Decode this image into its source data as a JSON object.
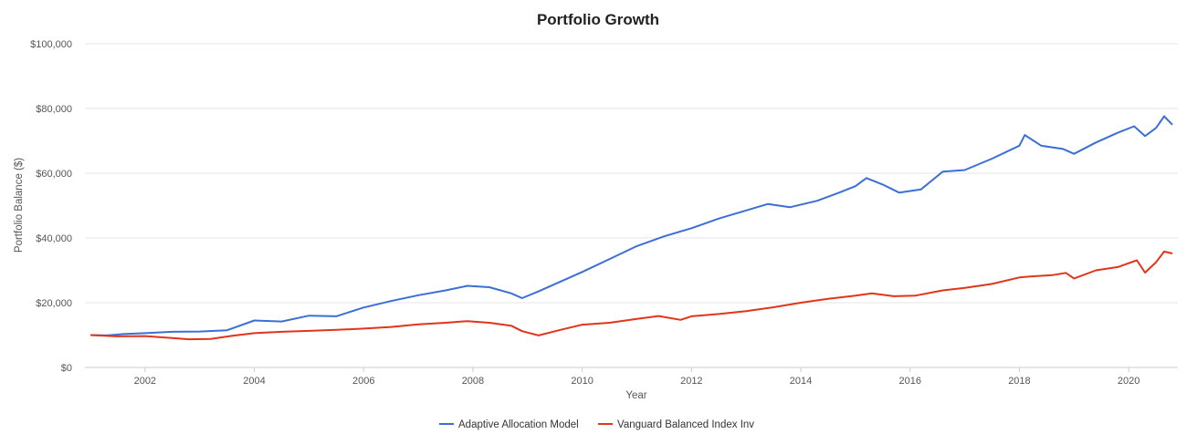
{
  "chart_data": {
    "type": "line",
    "title": "Portfolio Growth",
    "xlabel": "Year",
    "ylabel": "Portfolio Balance ($)",
    "xlim": [
      2000.9,
      2020.9
    ],
    "ylim": [
      0,
      100000
    ],
    "x_ticks": [
      2002,
      2004,
      2006,
      2008,
      2010,
      2012,
      2014,
      2016,
      2018,
      2020
    ],
    "y_ticks": [
      0,
      20000,
      40000,
      60000,
      80000,
      100000
    ],
    "y_tick_labels": [
      "$0",
      "$20,000",
      "$40,000",
      "$60,000",
      "$80,000",
      "$100,000"
    ],
    "grid": true,
    "legend_position": "bottom",
    "series": [
      {
        "name": "Adaptive Allocation Model",
        "color": "#3b6fd6",
        "points": [
          [
            2001.0,
            10000
          ],
          [
            2001.3,
            9900
          ],
          [
            2001.6,
            10300
          ],
          [
            2002.0,
            10600
          ],
          [
            2002.5,
            11000
          ],
          [
            2003.0,
            11100
          ],
          [
            2003.5,
            11500
          ],
          [
            2004.0,
            14500
          ],
          [
            2004.5,
            14200
          ],
          [
            2005.0,
            16000
          ],
          [
            2005.5,
            15800
          ],
          [
            2006.0,
            18500
          ],
          [
            2006.5,
            20500
          ],
          [
            2007.0,
            22300
          ],
          [
            2007.5,
            23800
          ],
          [
            2007.9,
            25200
          ],
          [
            2008.3,
            24800
          ],
          [
            2008.7,
            22900
          ],
          [
            2008.9,
            21400
          ],
          [
            2009.2,
            23500
          ],
          [
            2009.6,
            26500
          ],
          [
            2010.0,
            29500
          ],
          [
            2010.5,
            33500
          ],
          [
            2011.0,
            37500
          ],
          [
            2011.5,
            40500
          ],
          [
            2012.0,
            43000
          ],
          [
            2012.5,
            46000
          ],
          [
            2013.0,
            48500
          ],
          [
            2013.4,
            50500
          ],
          [
            2013.8,
            49500
          ],
          [
            2014.3,
            51500
          ],
          [
            2014.7,
            54000
          ],
          [
            2015.0,
            56000
          ],
          [
            2015.2,
            58500
          ],
          [
            2015.5,
            56500
          ],
          [
            2015.8,
            54000
          ],
          [
            2016.2,
            55000
          ],
          [
            2016.6,
            60500
          ],
          [
            2017.0,
            61000
          ],
          [
            2017.5,
            64500
          ],
          [
            2018.0,
            68500
          ],
          [
            2018.1,
            71800
          ],
          [
            2018.4,
            68500
          ],
          [
            2018.8,
            67500
          ],
          [
            2019.0,
            66000
          ],
          [
            2019.4,
            69500
          ],
          [
            2019.8,
            72500
          ],
          [
            2020.1,
            74500
          ],
          [
            2020.3,
            71500
          ],
          [
            2020.5,
            74000
          ],
          [
            2020.65,
            77600
          ],
          [
            2020.8,
            75000
          ]
        ]
      },
      {
        "name": "Vanguard Balanced Index Inv",
        "color": "#e0351b",
        "points": [
          [
            2001.0,
            10000
          ],
          [
            2001.5,
            9600
          ],
          [
            2002.0,
            9700
          ],
          [
            2002.5,
            9100
          ],
          [
            2002.8,
            8700
          ],
          [
            2003.2,
            8800
          ],
          [
            2003.6,
            9800
          ],
          [
            2004.0,
            10600
          ],
          [
            2004.5,
            11000
          ],
          [
            2005.0,
            11300
          ],
          [
            2005.5,
            11600
          ],
          [
            2006.0,
            12000
          ],
          [
            2006.5,
            12500
          ],
          [
            2007.0,
            13300
          ],
          [
            2007.5,
            13800
          ],
          [
            2007.9,
            14300
          ],
          [
            2008.3,
            13800
          ],
          [
            2008.7,
            12900
          ],
          [
            2008.9,
            11200
          ],
          [
            2009.2,
            9900
          ],
          [
            2009.6,
            11600
          ],
          [
            2010.0,
            13200
          ],
          [
            2010.5,
            13800
          ],
          [
            2011.0,
            15000
          ],
          [
            2011.4,
            15900
          ],
          [
            2011.8,
            14700
          ],
          [
            2012.0,
            15800
          ],
          [
            2012.5,
            16500
          ],
          [
            2013.0,
            17400
          ],
          [
            2013.5,
            18600
          ],
          [
            2014.0,
            20000
          ],
          [
            2014.5,
            21200
          ],
          [
            2015.0,
            22200
          ],
          [
            2015.3,
            22900
          ],
          [
            2015.7,
            22000
          ],
          [
            2016.1,
            22200
          ],
          [
            2016.6,
            23800
          ],
          [
            2017.0,
            24600
          ],
          [
            2017.5,
            25800
          ],
          [
            2018.0,
            27800
          ],
          [
            2018.2,
            28100
          ],
          [
            2018.6,
            28500
          ],
          [
            2018.85,
            29200
          ],
          [
            2019.0,
            27500
          ],
          [
            2019.4,
            30000
          ],
          [
            2019.8,
            31000
          ],
          [
            2020.15,
            33100
          ],
          [
            2020.3,
            29300
          ],
          [
            2020.5,
            32500
          ],
          [
            2020.65,
            35800
          ],
          [
            2020.8,
            35200
          ]
        ]
      }
    ]
  }
}
